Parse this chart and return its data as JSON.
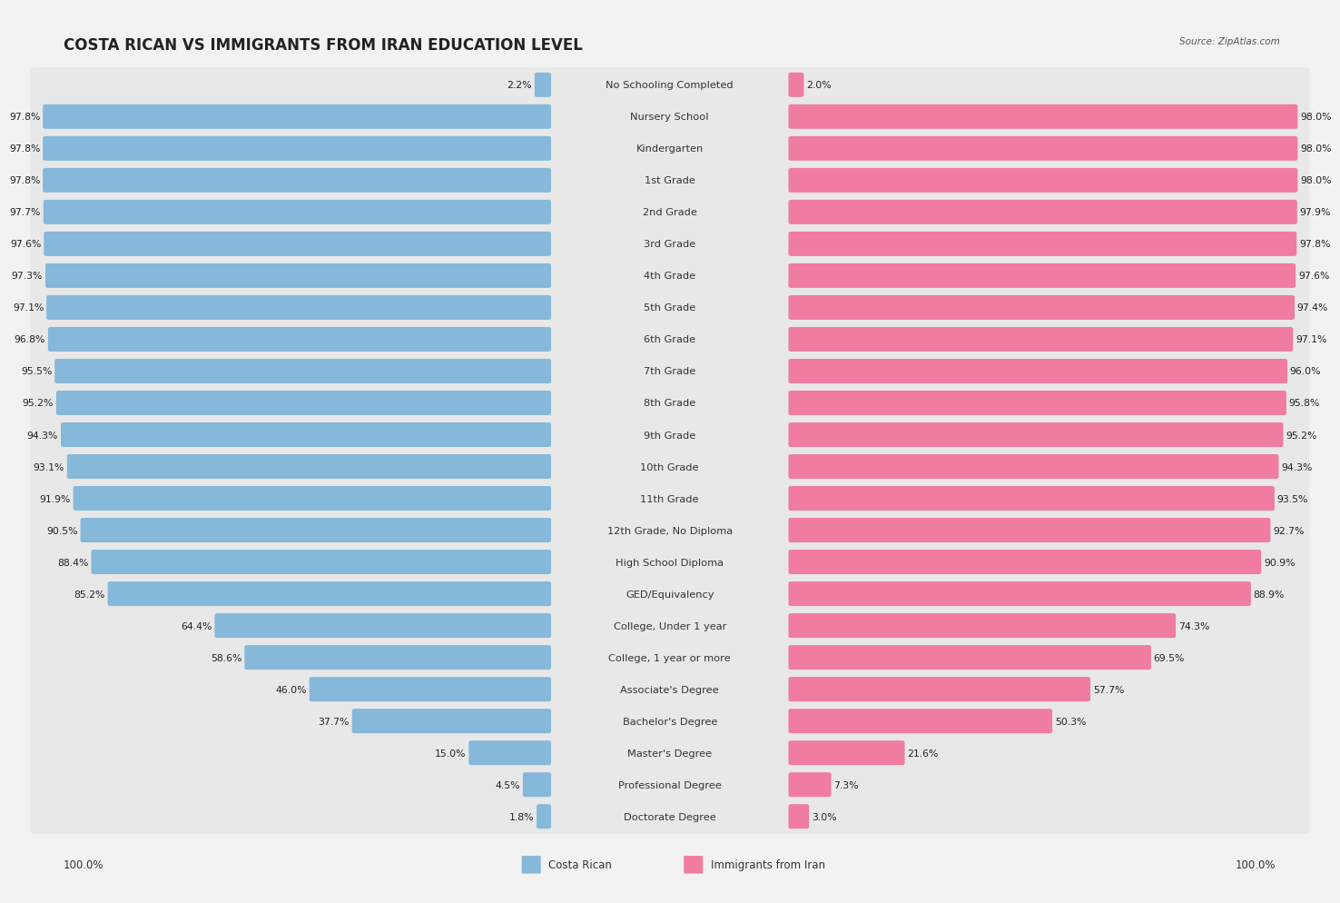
{
  "title": "COSTA RICAN VS IMMIGRANTS FROM IRAN EDUCATION LEVEL",
  "source": "Source: ZipAtlas.com",
  "categories": [
    "No Schooling Completed",
    "Nursery School",
    "Kindergarten",
    "1st Grade",
    "2nd Grade",
    "3rd Grade",
    "4th Grade",
    "5th Grade",
    "6th Grade",
    "7th Grade",
    "8th Grade",
    "9th Grade",
    "10th Grade",
    "11th Grade",
    "12th Grade, No Diploma",
    "High School Diploma",
    "GED/Equivalency",
    "College, Under 1 year",
    "College, 1 year or more",
    "Associate's Degree",
    "Bachelor's Degree",
    "Master's Degree",
    "Professional Degree",
    "Doctorate Degree"
  ],
  "costa_rican": [
    2.2,
    97.8,
    97.8,
    97.8,
    97.7,
    97.6,
    97.3,
    97.1,
    96.8,
    95.5,
    95.2,
    94.3,
    93.1,
    91.9,
    90.5,
    88.4,
    85.2,
    64.4,
    58.6,
    46.0,
    37.7,
    15.0,
    4.5,
    1.8
  ],
  "iran": [
    2.0,
    98.0,
    98.0,
    98.0,
    97.9,
    97.8,
    97.6,
    97.4,
    97.1,
    96.0,
    95.8,
    95.2,
    94.3,
    93.5,
    92.7,
    90.9,
    88.9,
    74.3,
    69.5,
    57.7,
    50.3,
    21.6,
    7.3,
    3.0
  ],
  "costa_rican_color": "#85b8d9",
  "iran_color": "#f07ca0",
  "bg_color": "#f2f2f2",
  "row_color": "#e8e8e8",
  "title_fontsize": 12,
  "label_fontsize": 8.2,
  "value_fontsize": 7.8,
  "legend_label_cr": "Costa Rican",
  "legend_label_ir": "Immigrants from Iran",
  "axis_label": "100.0%"
}
